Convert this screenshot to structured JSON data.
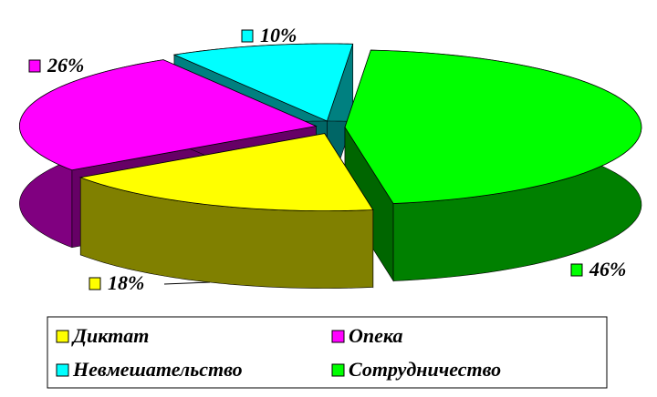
{
  "chart_data": {
    "type": "pie",
    "categories": [
      "Диктат",
      "Опека",
      "Невмешательство",
      "Сотрудничество"
    ],
    "values": [
      18,
      26,
      10,
      46
    ],
    "value_labels": [
      "18%",
      "26%",
      "10%",
      "46%"
    ],
    "colors": [
      "#ffff00",
      "#ff00ff",
      "#00ffff",
      "#00ff00"
    ],
    "legend": "bottom"
  }
}
